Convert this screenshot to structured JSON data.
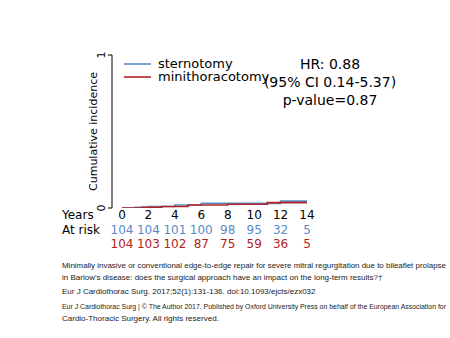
{
  "chart_data": {
    "type": "step",
    "y_label": "Cumulative incidence",
    "x_label": "Years",
    "at_risk_label": "At risk",
    "xlim": [
      0,
      14
    ],
    "xticks": [
      0,
      2,
      4,
      6,
      8,
      10,
      12,
      14
    ],
    "ylim": [
      0,
      1
    ],
    "yticks": [
      0,
      1
    ],
    "legend": "top-left",
    "grid": false,
    "annotations": [
      "HR: 0.88",
      "(95% CI  0.14-5.37)",
      "p-value=0.87"
    ],
    "series": [
      {
        "name": "sternotomy",
        "color": "#5a8ac6",
        "x": [
          0,
          1,
          2,
          4,
          6,
          10,
          12,
          14
        ],
        "values": [
          0,
          0.005,
          0.01,
          0.02,
          0.03,
          0.03,
          0.045,
          0.045
        ],
        "at_risk": [
          104,
          104,
          101,
          100,
          98,
          95,
          32,
          5
        ]
      },
      {
        "name": "minithoracotomy",
        "color": "#b22222",
        "x": [
          0,
          1.5,
          3,
          5,
          8,
          11,
          14
        ],
        "values": [
          0,
          0.005,
          0.01,
          0.02,
          0.025,
          0.035,
          0.035
        ],
        "at_risk": [
          104,
          103,
          102,
          87,
          75,
          59,
          36,
          5
        ]
      }
    ]
  },
  "caption": {
    "lines": [
      "Minimally invasive or conventional edge-to-edge repair for severe mitral regurgitation due to bileaflet prolapse",
      "in Barlow's disease: does the surgical approach have an impact on the long-term results?†",
      "Eur J Cardiothorac Surg. 2017;52(1):131-136. doi:10.1093/ejcts/ezx032",
      "Eur J Cardiothorac Surg | © The Author 2017. Published by Oxford University Press on behalf of the European Association for",
      "Cardio-Thoracic Surgery. All rights reserved."
    ]
  }
}
